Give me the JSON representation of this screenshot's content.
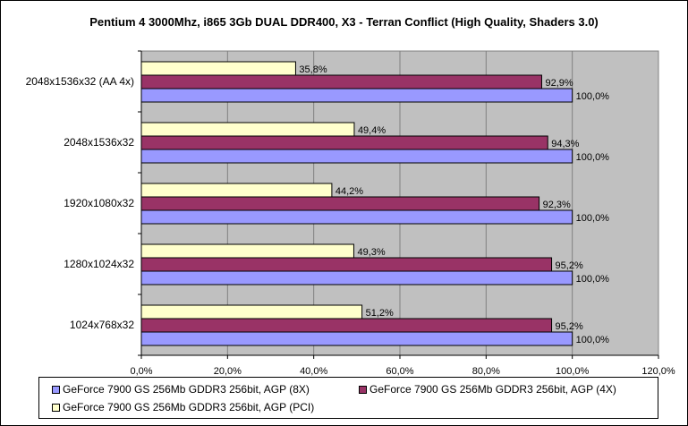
{
  "chart_data": {
    "type": "bar",
    "orientation": "horizontal",
    "title": "Pentium 4 3000Mhz, i865 3Gb DUAL DDR400, X3 - Terran Conflict (High Quality, Shaders 3.0)",
    "categories": [
      "2048x1536x32 (AA 4x)",
      "2048x1536x32",
      "1920x1080x32",
      "1280x1024x32",
      "1024x768x32"
    ],
    "series": [
      {
        "name": "GeForce 7900 GS 256Mb GDDR3 256bit, AGP (8X)",
        "color": "#9999ff",
        "values": [
          100.0,
          100.0,
          100.0,
          100.0,
          100.0
        ],
        "labels": [
          "100,0%",
          "100,0%",
          "100,0%",
          "100,0%",
          "100,0%"
        ]
      },
      {
        "name": "GeForce 7900 GS 256Mb GDDR3 256bit, AGP (4X)",
        "color": "#993366",
        "values": [
          92.9,
          94.3,
          92.3,
          95.2,
          95.2
        ],
        "labels": [
          "92,9%",
          "94,3%",
          "92,3%",
          "95,2%",
          "95,2%"
        ]
      },
      {
        "name": "GeForce 7900 GS 256Mb GDDR3 256bit, AGP (PCI)",
        "color": "#ffffcc",
        "values": [
          35.8,
          49.4,
          44.2,
          49.3,
          51.2
        ],
        "labels": [
          "35,8%",
          "49,4%",
          "44,2%",
          "49,3%",
          "51,2%"
        ]
      }
    ],
    "xlim": [
      0,
      120
    ],
    "xticks": [
      "0,0%",
      "20,0%",
      "40,0%",
      "60,0%",
      "80,0%",
      "100,0%",
      "120,0%"
    ],
    "grid": true,
    "plot_background": "#c0c0c0",
    "legend_placement": "bottom"
  }
}
